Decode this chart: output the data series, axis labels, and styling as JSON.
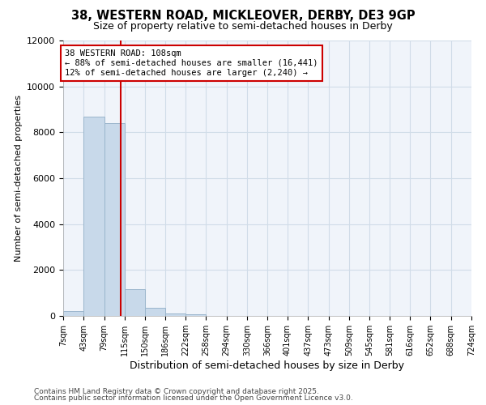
{
  "title_line1": "38, WESTERN ROAD, MICKLEOVER, DERBY, DE3 9GP",
  "title_line2": "Size of property relative to semi-detached houses in Derby",
  "xlabel": "Distribution of semi-detached houses by size in Derby",
  "ylabel": "Number of semi-detached properties",
  "property_label": "38 WESTERN ROAD: 108sqm",
  "pct_smaller": 88,
  "pct_larger": 12,
  "n_smaller": 16441,
  "n_larger": 2240,
  "bins": [
    7,
    43,
    79,
    115,
    150,
    186,
    222,
    258,
    294,
    330,
    366,
    401,
    437,
    473,
    509,
    545,
    581,
    616,
    652,
    688,
    724
  ],
  "counts": [
    200,
    8700,
    8400,
    1150,
    350,
    110,
    60,
    0,
    0,
    0,
    0,
    0,
    0,
    0,
    0,
    0,
    0,
    0,
    0,
    0
  ],
  "bar_color": "#c8d9ea",
  "bar_edge_color": "#9ab5cc",
  "vline_color": "#cc0000",
  "vline_x": 108,
  "annotation_box_color": "#cc0000",
  "grid_color": "#d0dce8",
  "background_color": "#ffffff",
  "plot_bg_color": "#f0f4fa",
  "ylim": [
    0,
    12000
  ],
  "yticks": [
    0,
    2000,
    4000,
    6000,
    8000,
    10000,
    12000
  ],
  "footer_line1": "Contains HM Land Registry data © Crown copyright and database right 2025.",
  "footer_line2": "Contains public sector information licensed under the Open Government Licence v3.0."
}
